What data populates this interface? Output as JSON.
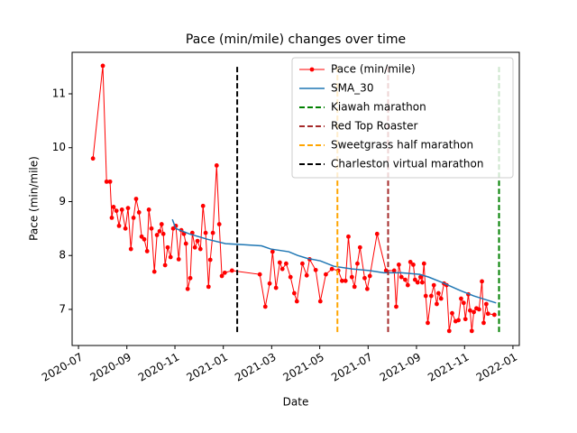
{
  "chart_data": {
    "type": "line",
    "title": "Pace (min/mile) changes over time",
    "xlabel": "Date",
    "ylabel": "Pace (min/mile)",
    "xlim": [
      2020.478,
      2022.022
    ],
    "ylim": [
      6.33,
      11.77
    ],
    "xticks": [
      {
        "value": 2020.5,
        "label": "2020-07"
      },
      {
        "value": 2020.667,
        "label": "2020-09"
      },
      {
        "value": 2020.833,
        "label": "2020-11"
      },
      {
        "value": 2021.0,
        "label": "2021-01"
      },
      {
        "value": 2021.167,
        "label": "2021-03"
      },
      {
        "value": 2021.333,
        "label": "2021-05"
      },
      {
        "value": 2021.5,
        "label": "2021-07"
      },
      {
        "value": 2021.667,
        "label": "2021-09"
      },
      {
        "value": 2021.833,
        "label": "2021-11"
      },
      {
        "value": 2022.0,
        "label": "2022-01"
      }
    ],
    "yticks": [
      7,
      8,
      9,
      10,
      11
    ],
    "legend": "upper right",
    "series": [
      {
        "name": "Pace (min/mile)",
        "color": "#ff0000",
        "marker": true,
        "x": [
          2020.55,
          2020.584,
          2020.597,
          2020.609,
          2020.615,
          2020.621,
          2020.631,
          2020.64,
          2020.65,
          2020.662,
          2020.671,
          2020.681,
          2020.69,
          2020.699,
          2020.709,
          2020.718,
          2020.727,
          2020.737,
          2020.743,
          2020.752,
          2020.762,
          2020.771,
          2020.78,
          2020.787,
          2020.793,
          2020.799,
          2020.808,
          2020.818,
          2020.827,
          2020.836,
          2020.846,
          2020.855,
          2020.864,
          2020.871,
          2020.877,
          2020.886,
          2020.893,
          2020.902,
          2020.911,
          2020.921,
          2020.93,
          2020.939,
          2020.949,
          2020.955,
          2020.964,
          2020.977,
          2020.986,
          2020.995,
          2021.005,
          2021.03,
          2021.126,
          2021.145,
          2021.16,
          2021.17,
          2021.182,
          2021.195,
          2021.204,
          2021.217,
          2021.232,
          2021.245,
          2021.254,
          2021.273,
          2021.288,
          2021.298,
          2021.319,
          2021.335,
          2021.354,
          2021.375,
          2021.397,
          2021.41,
          2021.422,
          2021.432,
          2021.444,
          2021.453,
          2021.463,
          2021.472,
          2021.488,
          2021.497,
          2021.506,
          2021.531,
          2021.562,
          2021.59,
          2021.597,
          2021.606,
          2021.615,
          2021.628,
          2021.637,
          2021.646,
          2021.656,
          2021.662,
          2021.671,
          2021.681,
          2021.687,
          2021.693,
          2021.699,
          2021.706,
          2021.718,
          2021.727,
          2021.737,
          2021.743,
          2021.752,
          2021.762,
          2021.771,
          2021.78,
          2021.79,
          2021.802,
          2021.812,
          2021.821,
          2021.83,
          2021.836,
          2021.846,
          2021.852,
          2021.858,
          2021.865,
          2021.874,
          2021.883,
          2021.893,
          2021.899,
          2021.908,
          2021.914,
          2021.936
        ],
        "values": [
          9.8,
          11.52,
          9.37,
          9.37,
          8.7,
          8.9,
          8.83,
          8.55,
          8.85,
          8.5,
          8.88,
          8.12,
          8.7,
          9.05,
          8.8,
          8.35,
          8.3,
          8.08,
          8.85,
          8.5,
          7.7,
          8.38,
          8.45,
          8.58,
          8.4,
          7.82,
          8.15,
          7.97,
          8.5,
          8.55,
          7.93,
          8.47,
          8.4,
          8.22,
          7.38,
          7.58,
          8.42,
          8.15,
          8.27,
          8.12,
          8.92,
          8.42,
          7.42,
          7.92,
          8.42,
          9.67,
          8.58,
          7.62,
          7.68,
          7.72,
          7.65,
          7.05,
          7.48,
          8.07,
          7.4,
          7.87,
          7.75,
          7.85,
          7.6,
          7.3,
          7.15,
          7.85,
          7.63,
          7.93,
          7.73,
          7.15,
          7.65,
          7.75,
          7.72,
          7.53,
          7.53,
          8.35,
          7.6,
          7.42,
          7.85,
          8.15,
          7.58,
          7.38,
          7.62,
          8.4,
          7.72,
          7.72,
          7.05,
          7.83,
          7.6,
          7.55,
          7.45,
          7.88,
          7.83,
          7.55,
          7.5,
          7.6,
          7.5,
          7.85,
          7.25,
          6.75,
          7.25,
          7.45,
          7.1,
          7.3,
          7.2,
          7.48,
          7.45,
          6.6,
          6.93,
          6.78,
          6.8,
          7.2,
          7.12,
          6.82,
          7.28,
          6.98,
          6.6,
          6.95,
          7.02,
          7.0,
          7.52,
          6.75,
          7.1,
          6.92,
          6.9
        ]
      },
      {
        "name": "SMA_30",
        "color": "#1f77b4",
        "marker": false,
        "x": [
          2020.824,
          2020.836,
          2020.883,
          2020.946,
          2021.008,
          2021.07,
          2021.132,
          2021.164,
          2021.226,
          2021.257,
          2021.288,
          2021.335,
          2021.382,
          2021.444,
          2021.506,
          2021.553,
          2021.615,
          2021.678,
          2021.709,
          2021.755,
          2021.818,
          2021.865,
          2021.942
        ],
        "values": [
          8.67,
          8.5,
          8.4,
          8.3,
          8.22,
          8.2,
          8.18,
          8.12,
          8.07,
          8.0,
          7.95,
          7.9,
          7.8,
          7.75,
          7.72,
          7.68,
          7.68,
          7.65,
          7.6,
          7.5,
          7.35,
          7.25,
          7.12
        ]
      }
    ],
    "vlines": [
      {
        "name": "Kiawah marathon",
        "color": "#008000",
        "x": 2021.952,
        "ymin": 6.58,
        "ymax": 11.5
      },
      {
        "name": "Red Top Roaster",
        "color": "#a52a2a",
        "x": 2021.569,
        "ymin": 6.58,
        "ymax": 11.5
      },
      {
        "name": "Sweetgrass half marathon",
        "color": "#ffa500",
        "x": 2021.394,
        "ymin": 6.58,
        "ymax": 11.5
      },
      {
        "name": "Charleston virtual marathon",
        "color": "#000000",
        "x": 2021.048,
        "ymin": 6.58,
        "ymax": 11.5
      }
    ]
  }
}
